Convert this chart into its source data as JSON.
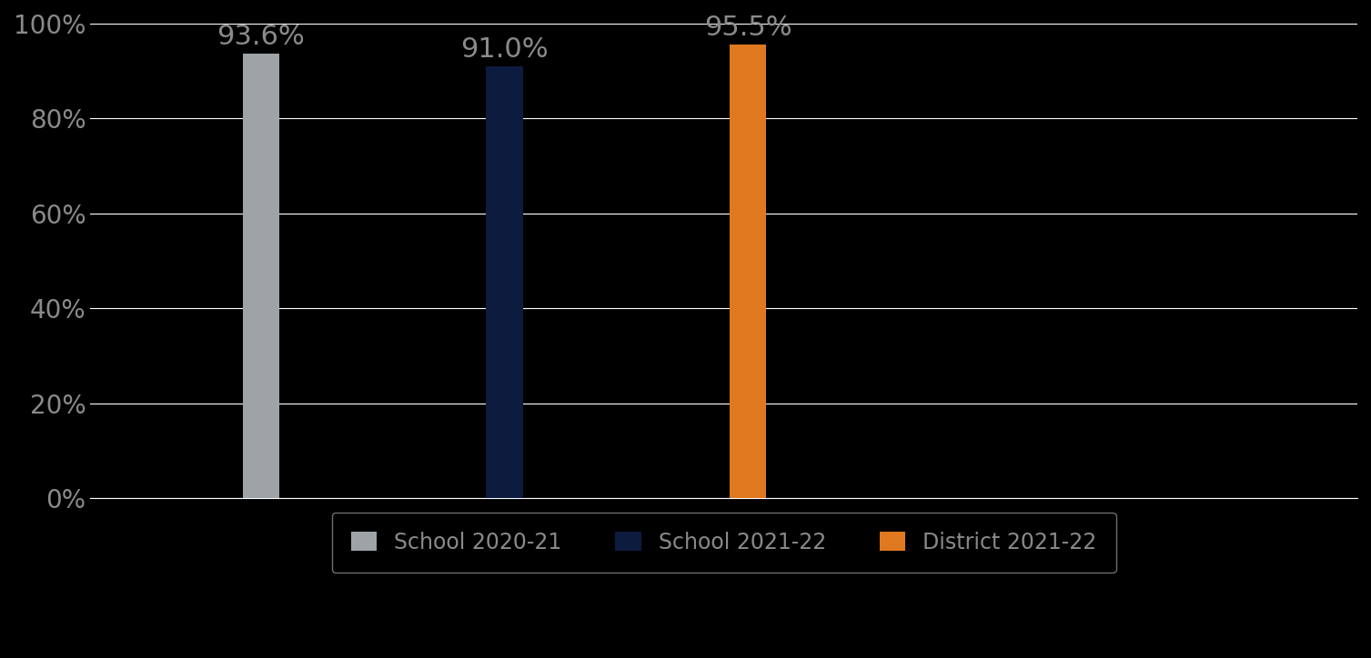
{
  "categories": [
    "School 2020-21",
    "School 2021-22",
    "District 2021-22"
  ],
  "values": [
    0.936,
    0.91,
    0.955
  ],
  "labels": [
    "93.6%",
    "91.0%",
    "95.5%"
  ],
  "bar_colors": [
    "#9ea3a8",
    "#0d1b3e",
    "#e07820"
  ],
  "background_color": "#000000",
  "text_color": "#8a8a8a",
  "grid_color": "#ffffff",
  "ylim": [
    0,
    1.0
  ],
  "yticks": [
    0.0,
    0.2,
    0.4,
    0.6,
    0.8,
    1.0
  ],
  "ytick_labels": [
    "0%",
    "20%",
    "40%",
    "60%",
    "80%",
    "100%"
  ],
  "label_fontsize": 22,
  "tick_fontsize": 20,
  "legend_fontsize": 17,
  "bar_width": 0.15,
  "x_positions": [
    1,
    2,
    3
  ],
  "xlim": [
    0.3,
    5.5
  ],
  "legend_labels": [
    "School 2020-21",
    "School 2021-22",
    "District 2021-22"
  ]
}
